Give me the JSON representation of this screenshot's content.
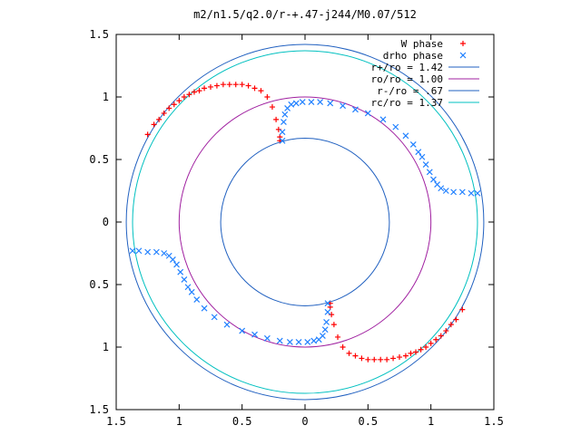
{
  "chart_data": {
    "type": "scatter",
    "title": "m2/n1.5/q2.0/r-+.47-j244/M0.07/512",
    "xlim": [
      -1.5,
      1.5
    ],
    "ylim": [
      -1.5,
      1.5
    ],
    "x_ticks": [
      -1.5,
      -1,
      -0.5,
      0,
      0.5,
      1,
      1.5
    ],
    "y_ticks": [
      -1.5,
      -1,
      -0.5,
      0,
      0.5,
      1,
      1.5
    ],
    "x_tick_labels": [
      "1.5",
      "1",
      "0.5",
      "0",
      "0.5",
      "1",
      "1.5"
    ],
    "y_tick_labels": [
      "1.5",
      "1",
      "0.5",
      "0",
      "0.5",
      "1",
      "1.5"
    ],
    "grid": false,
    "legend_position": "top-right",
    "series": [
      {
        "name": "W phase",
        "marker": "plus",
        "color": "#ff0000",
        "points": [
          [
            -1.25,
            0.7
          ],
          [
            -1.2,
            0.78
          ],
          [
            -1.16,
            0.82
          ],
          [
            -1.12,
            0.87
          ],
          [
            -1.08,
            0.91
          ],
          [
            -1.04,
            0.94
          ],
          [
            -1.0,
            0.97
          ],
          [
            -0.96,
            1.0
          ],
          [
            -0.92,
            1.02
          ],
          [
            -0.88,
            1.04
          ],
          [
            -0.84,
            1.05
          ],
          [
            -0.8,
            1.07
          ],
          [
            -0.75,
            1.08
          ],
          [
            -0.7,
            1.09
          ],
          [
            -0.65,
            1.1
          ],
          [
            -0.6,
            1.1
          ],
          [
            -0.55,
            1.1
          ],
          [
            -0.5,
            1.1
          ],
          [
            -0.45,
            1.09
          ],
          [
            -0.4,
            1.07
          ],
          [
            -0.35,
            1.05
          ],
          [
            -0.3,
            1.0
          ],
          [
            -0.26,
            0.92
          ],
          [
            -0.23,
            0.82
          ],
          [
            -0.21,
            0.74
          ],
          [
            -0.2,
            0.68
          ],
          [
            -0.2,
            0.65
          ],
          [
            1.25,
            -0.7
          ],
          [
            1.2,
            -0.78
          ],
          [
            1.16,
            -0.82
          ],
          [
            1.12,
            -0.87
          ],
          [
            1.08,
            -0.91
          ],
          [
            1.04,
            -0.94
          ],
          [
            1.0,
            -0.97
          ],
          [
            0.96,
            -1.0
          ],
          [
            0.92,
            -1.02
          ],
          [
            0.88,
            -1.04
          ],
          [
            0.84,
            -1.05
          ],
          [
            0.8,
            -1.07
          ],
          [
            0.75,
            -1.08
          ],
          [
            0.7,
            -1.09
          ],
          [
            0.65,
            -1.1
          ],
          [
            0.6,
            -1.1
          ],
          [
            0.55,
            -1.1
          ],
          [
            0.5,
            -1.1
          ],
          [
            0.45,
            -1.09
          ],
          [
            0.4,
            -1.07
          ],
          [
            0.35,
            -1.05
          ],
          [
            0.3,
            -1.0
          ],
          [
            0.26,
            -0.92
          ],
          [
            0.23,
            -0.82
          ],
          [
            0.21,
            -0.74
          ],
          [
            0.2,
            -0.68
          ],
          [
            0.2,
            -0.65
          ]
        ]
      },
      {
        "name": "drho phase",
        "marker": "cross",
        "color": "#2080ff",
        "points": [
          [
            -0.18,
            0.65
          ],
          [
            -0.18,
            0.72
          ],
          [
            -0.17,
            0.8
          ],
          [
            -0.16,
            0.86
          ],
          [
            -0.14,
            0.91
          ],
          [
            -0.11,
            0.94
          ],
          [
            -0.07,
            0.95
          ],
          [
            -0.02,
            0.96
          ],
          [
            0.05,
            0.96
          ],
          [
            0.12,
            0.96
          ],
          [
            0.2,
            0.95
          ],
          [
            0.3,
            0.93
          ],
          [
            0.4,
            0.9
          ],
          [
            0.5,
            0.87
          ],
          [
            0.62,
            0.82
          ],
          [
            0.72,
            0.76
          ],
          [
            0.8,
            0.69
          ],
          [
            0.86,
            0.62
          ],
          [
            0.9,
            0.56
          ],
          [
            0.93,
            0.52
          ],
          [
            0.96,
            0.46
          ],
          [
            0.99,
            0.4
          ],
          [
            1.02,
            0.34
          ],
          [
            1.05,
            0.3
          ],
          [
            1.08,
            0.27
          ],
          [
            1.12,
            0.25
          ],
          [
            1.18,
            0.24
          ],
          [
            1.25,
            0.24
          ],
          [
            1.32,
            0.23
          ],
          [
            1.37,
            0.23
          ],
          [
            0.18,
            -0.65
          ],
          [
            0.18,
            -0.72
          ],
          [
            0.17,
            -0.8
          ],
          [
            0.16,
            -0.86
          ],
          [
            0.14,
            -0.91
          ],
          [
            0.11,
            -0.94
          ],
          [
            0.07,
            -0.95
          ],
          [
            0.02,
            -0.96
          ],
          [
            -0.05,
            -0.96
          ],
          [
            -0.12,
            -0.96
          ],
          [
            -0.2,
            -0.95
          ],
          [
            -0.3,
            -0.93
          ],
          [
            -0.4,
            -0.9
          ],
          [
            -0.5,
            -0.87
          ],
          [
            -0.62,
            -0.82
          ],
          [
            -0.72,
            -0.76
          ],
          [
            -0.8,
            -0.69
          ],
          [
            -0.86,
            -0.62
          ],
          [
            -0.9,
            -0.56
          ],
          [
            -0.93,
            -0.52
          ],
          [
            -0.96,
            -0.46
          ],
          [
            -0.99,
            -0.4
          ],
          [
            -1.02,
            -0.34
          ],
          [
            -1.05,
            -0.3
          ],
          [
            -1.08,
            -0.27
          ],
          [
            -1.12,
            -0.25
          ],
          [
            -1.18,
            -0.24
          ],
          [
            -1.25,
            -0.24
          ],
          [
            -1.32,
            -0.23
          ],
          [
            -1.37,
            -0.23
          ]
        ]
      },
      {
        "name": "r+/ro = 1.42",
        "type": "circle",
        "radius": 1.42,
        "color": "#2060c0"
      },
      {
        "name": "ro/ro = 1.00",
        "type": "circle",
        "radius": 1.0,
        "color": "#a020a0"
      },
      {
        "name": "r-/ro = .67",
        "type": "circle",
        "radius": 0.67,
        "color": "#2060c0"
      },
      {
        "name": "rc/ro = 1.37",
        "type": "circle",
        "radius": 1.37,
        "color": "#00c0c0"
      }
    ]
  }
}
